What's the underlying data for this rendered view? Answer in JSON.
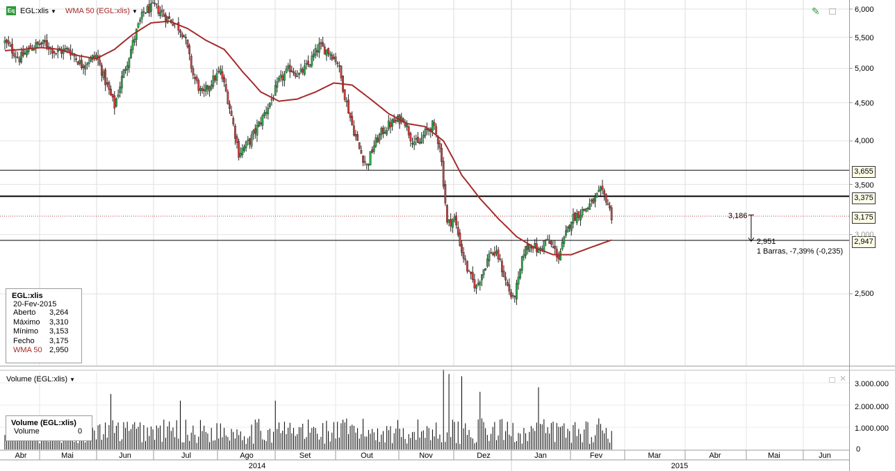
{
  "toolbar": {
    "symbol_label": "EGL:xlis",
    "symbol_icon": "eq-icon",
    "indicator_label": "WMA 50 (EGL:xlis)",
    "indicator_color": "#a52a2a",
    "dropdown_icon": "caret-down-icon",
    "draw_icon": "pencil-icon",
    "window_icon": "window-icon"
  },
  "info_box": {
    "title": "EGL:xlis",
    "date": "20-Fev-2015",
    "rows": [
      {
        "label": "Aberto",
        "value": "3,264"
      },
      {
        "label": "Máximo",
        "value": "3,310"
      },
      {
        "label": "Mínimo",
        "value": "3,153"
      },
      {
        "label": "Fecho",
        "value": "3,175"
      },
      {
        "label": "WMA 50",
        "value": "2,950"
      }
    ]
  },
  "price_tags": [
    {
      "label": "3,655",
      "value": 3.655
    },
    {
      "label": "3,375",
      "value": 3.375
    },
    {
      "label": "3,175",
      "value": 3.175
    },
    {
      "label": "2,947",
      "value": 2.947
    }
  ],
  "measurement": {
    "start_label": "3,186",
    "end_label": "2,951",
    "summary": "1 Barras, -7,39% (-0,235)"
  },
  "volume_panel": {
    "title": "Volume (EGL:xlis)",
    "box_title": "Volume (EGL:xlis)",
    "box_label": "Volume",
    "box_value": "0"
  },
  "chart_data": [
    {
      "type": "candlestick",
      "title": "EGL:xlis",
      "y_scale": "log",
      "ylim": [
        2.05,
        6.1
      ],
      "y_ticks": [
        {
          "label": "6,000",
          "value": 6.0
        },
        {
          "label": "5,500",
          "value": 5.5
        },
        {
          "label": "5,000",
          "value": 5.0
        },
        {
          "label": "4,500",
          "value": 4.5
        },
        {
          "label": "4,000",
          "value": 4.0
        },
        {
          "label": "3,500",
          "value": 3.5
        },
        {
          "label": "3,000",
          "value": 3.0
        },
        {
          "label": "2,500",
          "value": 2.5
        }
      ],
      "x_ticks": [
        "Abr",
        "Mai",
        "Jun",
        "Jul",
        "Ago",
        "Set",
        "Out",
        "Nov",
        "Dez",
        "Jan",
        "Fev",
        "Mar",
        "Abr",
        "Mai",
        "Jun"
      ],
      "years": [
        "2014",
        "2015"
      ],
      "horizontal_lines": [
        3.655,
        3.375,
        2.947
      ],
      "last_close_line": 3.175,
      "close_path": [
        [
          0,
          5.42
        ],
        [
          8,
          5.15
        ],
        [
          15,
          5.35
        ],
        [
          22,
          5.4
        ],
        [
          28,
          5.25
        ],
        [
          35,
          5.3
        ],
        [
          42,
          5.05
        ],
        [
          50,
          5.2
        ],
        [
          55,
          4.8
        ],
        [
          60,
          4.45
        ],
        [
          64,
          4.85
        ],
        [
          68,
          5.2
        ],
        [
          72,
          5.6
        ],
        [
          76,
          5.95
        ],
        [
          82,
          6.05
        ],
        [
          88,
          5.85
        ],
        [
          93,
          5.75
        ],
        [
          98,
          5.55
        ],
        [
          103,
          4.9
        ],
        [
          108,
          4.6
        ],
        [
          113,
          4.8
        ],
        [
          118,
          4.95
        ],
        [
          122,
          4.55
        ],
        [
          128,
          3.85
        ],
        [
          134,
          4.0
        ],
        [
          140,
          4.25
        ],
        [
          146,
          4.55
        ],
        [
          150,
          4.8
        ],
        [
          156,
          5.0
        ],
        [
          161,
          4.9
        ],
        [
          166,
          5.05
        ],
        [
          172,
          5.35
        ],
        [
          178,
          5.25
        ],
        [
          182,
          5.1
        ],
        [
          186,
          4.6
        ],
        [
          190,
          4.2
        ],
        [
          194,
          3.9
        ],
        [
          198,
          3.7
        ],
        [
          202,
          3.95
        ],
        [
          206,
          4.1
        ],
        [
          210,
          4.2
        ],
        [
          214,
          4.25
        ],
        [
          218,
          4.3
        ],
        [
          222,
          4.05
        ],
        [
          226,
          3.95
        ],
        [
          230,
          4.1
        ],
        [
          234,
          4.2
        ],
        [
          238,
          3.95
        ],
        [
          242,
          3.1
        ],
        [
          246,
          3.15
        ],
        [
          250,
          2.85
        ],
        [
          254,
          2.65
        ],
        [
          258,
          2.55
        ],
        [
          262,
          2.7
        ],
        [
          266,
          2.85
        ],
        [
          270,
          2.8
        ],
        [
          274,
          2.6
        ],
        [
          278,
          2.45
        ],
        [
          281,
          2.6
        ],
        [
          284,
          2.85
        ],
        [
          288,
          2.92
        ],
        [
          292,
          2.85
        ],
        [
          296,
          2.95
        ],
        [
          300,
          2.88
        ],
        [
          303,
          2.8
        ],
        [
          306,
          2.95
        ],
        [
          310,
          3.15
        ],
        [
          314,
          3.2
        ],
        [
          318,
          3.25
        ],
        [
          322,
          3.32
        ],
        [
          326,
          3.42
        ],
        [
          329,
          3.35
        ],
        [
          332,
          3.175
        ]
      ],
      "wma_path": [
        [
          0,
          5.28
        ],
        [
          10,
          5.3
        ],
        [
          20,
          5.33
        ],
        [
          30,
          5.3
        ],
        [
          40,
          5.2
        ],
        [
          50,
          5.15
        ],
        [
          60,
          5.3
        ],
        [
          70,
          5.55
        ],
        [
          80,
          5.75
        ],
        [
          90,
          5.78
        ],
        [
          100,
          5.65
        ],
        [
          110,
          5.45
        ],
        [
          120,
          5.3
        ],
        [
          130,
          4.95
        ],
        [
          140,
          4.65
        ],
        [
          150,
          4.52
        ],
        [
          160,
          4.55
        ],
        [
          170,
          4.65
        ],
        [
          180,
          4.78
        ],
        [
          190,
          4.75
        ],
        [
          200,
          4.55
        ],
        [
          210,
          4.35
        ],
        [
          220,
          4.22
        ],
        [
          230,
          4.18
        ],
        [
          240,
          4.0
        ],
        [
          250,
          3.6
        ],
        [
          260,
          3.35
        ],
        [
          270,
          3.15
        ],
        [
          280,
          2.98
        ],
        [
          290,
          2.88
        ],
        [
          300,
          2.82
        ],
        [
          310,
          2.82
        ],
        [
          320,
          2.88
        ],
        [
          332,
          2.95
        ]
      ]
    },
    {
      "type": "bar",
      "title": "Volume (EGL:xlis)",
      "ylim": [
        0,
        3600000
      ],
      "y_ticks": [
        {
          "label": "3.000.000",
          "value": 3000000
        },
        {
          "label": "2.000.000",
          "value": 2000000
        },
        {
          "label": "1.000.000",
          "value": 1000000
        },
        {
          "label": "0",
          "value": 0
        }
      ],
      "spikes": [
        [
          58,
          2500000
        ],
        [
          96,
          2200000
        ],
        [
          148,
          2200000
        ],
        [
          240,
          3600000
        ],
        [
          243,
          3400000
        ],
        [
          250,
          3300000
        ],
        [
          260,
          2600000
        ],
        [
          292,
          2800000
        ],
        [
          325,
          1400000
        ]
      ]
    }
  ]
}
